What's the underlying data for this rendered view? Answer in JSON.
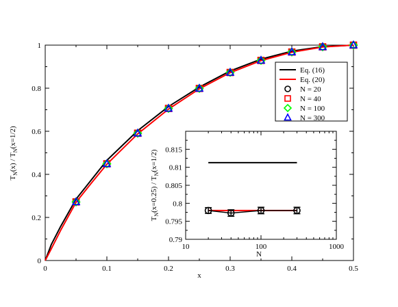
{
  "chart_data": [
    {
      "type": "line",
      "xlabel": "x",
      "ylabel": "T_N(x) / T_N(x=1/2)",
      "ylabel_parts": {
        "t1": "T",
        "s1": "N",
        "m": "(x) / T",
        "s2": "N",
        "e": "(x=1/2)"
      },
      "xlim": [
        0,
        0.5
      ],
      "ylim": [
        0,
        1
      ],
      "x_ticks": [
        0,
        0.1,
        0.2,
        0.3,
        0.4,
        0.5
      ],
      "x_tick_labels": [
        "0",
        "0.1",
        "0.2",
        "0.3",
        "0.4",
        "0.5"
      ],
      "y_ticks": [
        0,
        0.2,
        0.4,
        0.6,
        0.8,
        1
      ],
      "y_tick_labels": [
        "0",
        "0.2",
        "0.4",
        "0.6",
        "0.8",
        "1"
      ],
      "legend_position": "top-right",
      "curves": [
        {
          "name": "Eq. (16)",
          "color": "#000000",
          "x": [
            0,
            0.01,
            0.025,
            0.05,
            0.075,
            0.1,
            0.15,
            0.2,
            0.25,
            0.3,
            0.35,
            0.4,
            0.45,
            0.5
          ],
          "y": [
            0,
            0.075,
            0.158,
            0.285,
            0.375,
            0.465,
            0.603,
            0.715,
            0.805,
            0.88,
            0.935,
            0.972,
            0.993,
            1.0
          ]
        },
        {
          "name": "Eq. (20)",
          "color": "#ff0000",
          "x": [
            0,
            0.01,
            0.025,
            0.05,
            0.075,
            0.1,
            0.15,
            0.2,
            0.25,
            0.3,
            0.35,
            0.4,
            0.45,
            0.5
          ],
          "y": [
            0,
            0.055,
            0.14,
            0.27,
            0.36,
            0.447,
            0.588,
            0.703,
            0.797,
            0.872,
            0.928,
            0.967,
            0.991,
            1.0
          ]
        }
      ],
      "markers": [
        {
          "name": "N = 20",
          "shape": "circle",
          "color": "#000000"
        },
        {
          "name": "N = 40",
          "shape": "square",
          "color": "#ff0000"
        },
        {
          "name": "N = 100",
          "shape": "diamond",
          "color": "#00ff00"
        },
        {
          "name": "N = 300",
          "shape": "triangle",
          "color": "#0000ff"
        }
      ],
      "marker_points": {
        "x": [
          0.05,
          0.1,
          0.15,
          0.2,
          0.25,
          0.3,
          0.35,
          0.4,
          0.45,
          0.5
        ],
        "y": [
          0.272,
          0.449,
          0.591,
          0.706,
          0.799,
          0.873,
          0.929,
          0.968,
          0.992,
          1.0
        ]
      }
    },
    {
      "type": "scatter",
      "xlabel": "N",
      "ylabel": "T_N(x=0.25) / T_N(x=1/2)",
      "ylabel_parts": {
        "t1": "T",
        "s1": "N",
        "m": "(x=0.25) / T",
        "s2": "N",
        "e": "(x=1/2)"
      },
      "x_scale": "log",
      "xlim": [
        10,
        1000
      ],
      "ylim": [
        0.79,
        0.82
      ],
      "x_ticks": [
        10,
        100,
        1000
      ],
      "x_tick_labels": [
        "10",
        "100",
        "1000"
      ],
      "y_ticks": [
        0.79,
        0.795,
        0.8,
        0.805,
        0.81,
        0.815
      ],
      "y_tick_labels": [
        "0.79",
        "0.795",
        "0.8",
        "0.805",
        "0.81",
        "0.815"
      ],
      "reference_line": {
        "color": "#000000",
        "x": [
          20,
          300
        ],
        "y": [
          0.8113,
          0.8113
        ]
      },
      "fit_line": {
        "color": "#ff0000",
        "x": [
          20,
          300
        ],
        "y": [
          0.798,
          0.798
        ]
      },
      "points": {
        "color": "#000000",
        "x": [
          20,
          40,
          100,
          300
        ],
        "y": [
          0.798,
          0.7973,
          0.798,
          0.798
        ],
        "err": [
          0.0008,
          0.0009,
          0.0009,
          0.0009
        ]
      }
    }
  ]
}
